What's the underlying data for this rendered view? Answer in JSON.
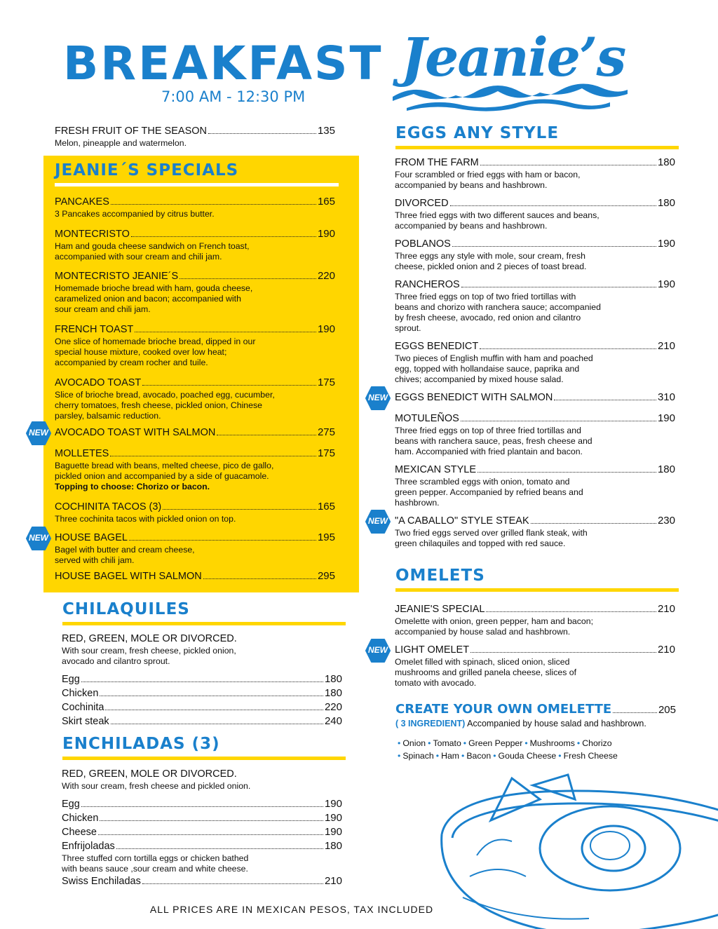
{
  "header": {
    "title": "BREAKFAST",
    "hours": "7:00 AM - 12:30 PM",
    "logo_text": "Jeanie's"
  },
  "colors": {
    "brand_blue": "#1a80cc",
    "accent_yellow": "#ffd600"
  },
  "badge_label": "NEW",
  "fresh_fruit": {
    "name": "FRESH FRUIT OF THE SEASON",
    "price": "135",
    "desc": [
      "Melon, pineapple and watermelon."
    ]
  },
  "specials": {
    "title": "JEANIE´S SPECIALS",
    "items": [
      {
        "name": "PANCAKES",
        "price": "165",
        "desc": [
          "3 Pancakes accompanied by citrus butter."
        ]
      },
      {
        "name": "MONTECRISTO",
        "price": "190",
        "desc": [
          "Ham and gouda cheese sandwich on French toast,",
          "accompanied with sour cream and chili jam."
        ]
      },
      {
        "name": "MONTECRISTO JEANIE´S",
        "price": "220",
        "desc": [
          "Homemade brioche bread with ham, gouda cheese,",
          "caramelized onion and bacon; accompanied with",
          "sour cream and chili jam."
        ]
      },
      {
        "name": "FRENCH TOAST",
        "price": "190",
        "desc": [
          "One slice of homemade brioche bread, dipped in our",
          "special house mixture, cooked over low heat;",
          "accompanied by cream rocher and tuile."
        ]
      },
      {
        "name": "AVOCADO TOAST",
        "price": "175",
        "desc": [
          "Slice of brioche bread, avocado, poached egg, cucumber,",
          "cherry tomatoes, fresh cheese, pickled onion, Chinese",
          "parsley, balsamic reduction."
        ]
      },
      {
        "name": "AVOCADO TOAST WITH SALMON",
        "price": "275",
        "desc": [],
        "new": true
      },
      {
        "name": "MOLLETES",
        "price": "175",
        "desc": [
          "Baguette bread with beans, melted cheese, pico de gallo,",
          "pickled onion and accompanied by a side of guacamole."
        ],
        "bold_desc": "Topping to choose: Chorizo or bacon."
      },
      {
        "name": "COCHINITA TACOS (3)",
        "price": "165",
        "desc": [
          "Three cochinita tacos with pickled onion on top."
        ]
      },
      {
        "name": "HOUSE BAGEL",
        "price": "195",
        "desc": [
          "Bagel with butter and cream cheese,",
          "served with chili jam."
        ],
        "new": true
      },
      {
        "name": "HOUSE BAGEL WITH SALMON",
        "price": "295",
        "desc": []
      }
    ]
  },
  "chilaquiles": {
    "title": "CHILAQUILES",
    "items": [
      {
        "name": "RED, GREEN, MOLE OR DIVORCED.",
        "price": "",
        "desc": [
          "With sour cream, fresh cheese, pickled onion,",
          "avocado and cilantro sprout."
        ]
      },
      {
        "name": "Egg",
        "price": "180",
        "desc": []
      },
      {
        "name": "Chicken",
        "price": "180",
        "desc": []
      },
      {
        "name": "Cochinita",
        "price": "220",
        "desc": []
      },
      {
        "name": "Skirt steak",
        "price": "240",
        "desc": []
      }
    ]
  },
  "enchiladas": {
    "title": "ENCHILADAS (3)",
    "items": [
      {
        "name": "RED, GREEN, MOLE OR DIVORCED.",
        "price": "",
        "desc": [
          "With sour cream, fresh cheese and pickled onion."
        ]
      },
      {
        "name": "Egg",
        "price": "190",
        "desc": []
      },
      {
        "name": "Chicken",
        "price": "190",
        "desc": []
      },
      {
        "name": "Cheese",
        "price": "190",
        "desc": []
      },
      {
        "name": "Enfrijoladas",
        "price": "180",
        "desc": [
          "Three stuffed corn tortilla eggs or chicken bathed",
          "with beans sauce ,sour cream and white cheese."
        ]
      },
      {
        "name": "Swiss Enchiladas",
        "price": "210",
        "desc": []
      }
    ]
  },
  "eggs": {
    "title": "EGGS ANY STYLE",
    "items": [
      {
        "name": "FROM THE FARM",
        "price": "180",
        "desc": [
          "Four scrambled or fried eggs with ham or bacon,",
          "accompanied by beans and hashbrown."
        ]
      },
      {
        "name": "DIVORCED",
        "price": "180",
        "desc": [
          "Three fried eggs with two different sauces and beans,",
          "accompanied by beans and hashbrown."
        ]
      },
      {
        "name": "POBLANOS",
        "price": "190",
        "desc": [
          "Three eggs any style with mole, sour cream, fresh",
          "cheese, pickled onion and 2 pieces of toast bread."
        ]
      },
      {
        "name": "RANCHEROS",
        "price": "190",
        "desc": [
          "Three fried eggs on top of two fried tortillas with",
          "beans and chorizo with ranchera sauce; accompanied",
          "by fresh cheese, avocado, red onion and cilantro",
          "sprout."
        ]
      },
      {
        "name": "EGGS BENEDICT",
        "price": "210",
        "desc": [
          "Two pieces of English muffin with ham and poached",
          "egg, topped with hollandaise sauce, paprika and",
          "chives; accompanied by mixed house salad."
        ]
      },
      {
        "name": "EGGS BENEDICT WITH SALMON",
        "price": "310",
        "desc": [],
        "new": true
      },
      {
        "name": "MOTULEÑOS",
        "price": "190",
        "desc": [
          "Three fried eggs on top of three fried tortillas and",
          "beans with ranchera sauce, peas, fresh cheese and",
          "ham. Accompanied with fried plantain and bacon."
        ]
      },
      {
        "name": "MEXICAN STYLE",
        "price": "180",
        "desc": [
          "Three scrambled eggs with onion, tomato and",
          "green pepper. Accompanied by refried beans and",
          "hashbrown."
        ]
      },
      {
        "name": "\"A CABALLO\" STYLE STEAK",
        "price": "230",
        "desc": [
          "Two fried eggs served over grilled flank steak, with",
          "green chilaquiles and topped with red sauce."
        ],
        "new": true
      }
    ]
  },
  "omelets": {
    "title": "OMELETS",
    "items": [
      {
        "name": "JEANIE'S SPECIAL",
        "price": "210",
        "desc": [
          "Omelette with onion, green pepper, ham and bacon;",
          "accompanied by house salad and hashbrown."
        ]
      },
      {
        "name": "LIGHT OMELET",
        "price": "210",
        "desc": [
          "Omelet filled with spinach, sliced onion, sliced",
          "mushrooms and grilled panela cheese, slices of",
          "tomato with avocado."
        ],
        "new": true
      }
    ]
  },
  "create": {
    "title": "CREATE YOUR OWN OMELETTE",
    "price": "205",
    "ingredient_note": "( 3 INGREDIENT)",
    "desc": "Accompanied by house salad and hashbrown.",
    "ingredients_line1": [
      "Onion",
      "Tomato",
      "Green Pepper",
      "Mushrooms",
      "Chorizo"
    ],
    "ingredients_line2": [
      "Spinach",
      "Ham",
      "Bacon",
      "Gouda Cheese",
      "Fresh Cheese"
    ]
  },
  "footer": "ALL PRICES ARE IN MEXICAN PESOS, TAX INCLUDED"
}
